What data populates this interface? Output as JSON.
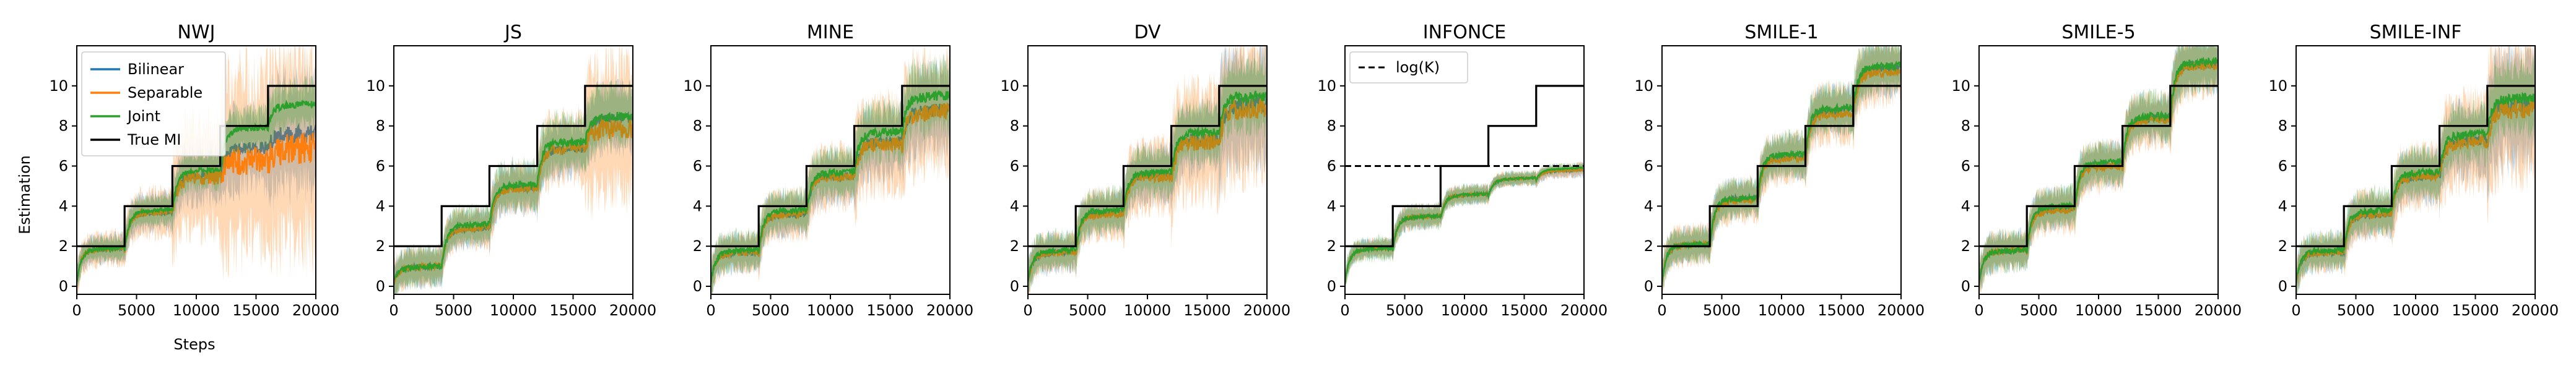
{
  "figure": {
    "shared_ylabel": "Estimation",
    "shared_xlabel": "Steps",
    "x_ticks": [
      0,
      5000,
      10000,
      15000,
      20000
    ],
    "y_ticks": [
      0,
      2,
      4,
      6,
      8,
      10
    ],
    "xlim": [
      0,
      20000
    ],
    "ylim": [
      -0.4,
      12
    ],
    "colors": {
      "Bilinear": "#1f77b4",
      "Separable": "#ff7f0e",
      "Joint": "#2ca02c",
      "True MI": "#000000"
    },
    "legend": {
      "panel": "NWJ",
      "entries": [
        "Bilinear",
        "Separable",
        "Joint",
        "True MI"
      ]
    },
    "infonce_legend": {
      "label": "log(K)"
    }
  },
  "chart_data": [
    {
      "type": "line",
      "title": "NWJ",
      "xlabel": "Steps",
      "ylabel": "Estimation",
      "xlim": [
        0,
        20000
      ],
      "ylim": [
        -0.4,
        12
      ],
      "true_mi": {
        "x": [
          0,
          4000,
          8000,
          12000,
          16000,
          20000
        ],
        "y": [
          2,
          4,
          6,
          8,
          10,
          10
        ]
      },
      "series": [
        {
          "name": "Bilinear",
          "plateaus": [
            1.8,
            3.6,
            5.5,
            6.8,
            7.5
          ],
          "band": [
            0.6,
            0.8,
            1.2,
            1.8,
            2.5
          ]
        },
        {
          "name": "Separable",
          "plateaus": [
            1.8,
            3.6,
            5.4,
            6.2,
            6.8
          ],
          "band": [
            0.7,
            1.0,
            2.5,
            4.0,
            4.5
          ]
        },
        {
          "name": "Joint",
          "plateaus": [
            1.8,
            3.7,
            5.7,
            7.8,
            9.0
          ],
          "band": [
            0.5,
            0.6,
            0.8,
            0.9,
            1.0
          ]
        }
      ]
    },
    {
      "type": "line",
      "title": "JS",
      "xlabel": "",
      "ylabel": "",
      "xlim": [
        0,
        20000
      ],
      "ylim": [
        -0.4,
        12
      ],
      "true_mi": {
        "x": [
          0,
          4000,
          8000,
          12000,
          16000,
          20000
        ],
        "y": [
          2,
          4,
          6,
          8,
          10,
          10
        ]
      },
      "series": [
        {
          "name": "Bilinear",
          "plateaus": [
            0.9,
            2.8,
            4.8,
            6.8,
            8.3
          ],
          "band": [
            0.8,
            0.8,
            1.0,
            1.2,
            1.4
          ]
        },
        {
          "name": "Separable",
          "plateaus": [
            0.9,
            2.8,
            4.8,
            6.8,
            7.8
          ],
          "band": [
            0.8,
            0.8,
            1.0,
            1.5,
            3.0
          ]
        },
        {
          "name": "Joint",
          "plateaus": [
            0.9,
            3.0,
            5.0,
            7.1,
            8.4
          ],
          "band": [
            0.8,
            0.8,
            1.0,
            1.2,
            1.3
          ]
        }
      ]
    },
    {
      "type": "line",
      "title": "MINE",
      "xlabel": "",
      "ylabel": "",
      "xlim": [
        0,
        20000
      ],
      "ylim": [
        -0.4,
        12
      ],
      "true_mi": {
        "x": [
          0,
          4000,
          8000,
          12000,
          16000,
          20000
        ],
        "y": [
          2,
          4,
          6,
          8,
          10,
          10
        ]
      },
      "series": [
        {
          "name": "Bilinear",
          "plateaus": [
            1.6,
            3.5,
            5.4,
            7.1,
            8.7
          ],
          "band": [
            0.8,
            0.9,
            1.1,
            1.5,
            1.8
          ]
        },
        {
          "name": "Separable",
          "plateaus": [
            1.6,
            3.5,
            5.4,
            7.0,
            8.6
          ],
          "band": [
            0.8,
            1.0,
            1.3,
            2.0,
            2.5
          ]
        },
        {
          "name": "Joint",
          "plateaus": [
            1.7,
            3.7,
            5.6,
            7.6,
            9.4
          ],
          "band": [
            0.8,
            0.9,
            1.0,
            1.2,
            1.5
          ]
        }
      ]
    },
    {
      "type": "line",
      "title": "DV",
      "xlabel": "",
      "ylabel": "",
      "xlim": [
        0,
        20000
      ],
      "ylim": [
        -0.4,
        12
      ],
      "true_mi": {
        "x": [
          0,
          4000,
          8000,
          12000,
          16000,
          20000
        ],
        "y": [
          2,
          4,
          6,
          8,
          10,
          10
        ]
      },
      "series": [
        {
          "name": "Bilinear",
          "plateaus": [
            1.6,
            3.6,
            5.5,
            7.3,
            9.0
          ],
          "band": [
            0.8,
            0.9,
            1.2,
            1.5,
            2.5
          ]
        },
        {
          "name": "Separable",
          "plateaus": [
            1.6,
            3.5,
            5.4,
            7.1,
            8.8
          ],
          "band": [
            0.8,
            1.0,
            1.5,
            2.5,
            3.0
          ]
        },
        {
          "name": "Joint",
          "plateaus": [
            1.7,
            3.7,
            5.6,
            7.6,
            9.4
          ],
          "band": [
            0.8,
            0.9,
            1.0,
            1.2,
            1.5
          ]
        }
      ]
    },
    {
      "type": "line",
      "title": "INFONCE",
      "xlabel": "",
      "ylabel": "",
      "xlim": [
        0,
        20000
      ],
      "ylim": [
        -0.4,
        12
      ],
      "true_mi": {
        "x": [
          0,
          4000,
          8000,
          12000,
          16000,
          20000
        ],
        "y": [
          2,
          4,
          6,
          8,
          10,
          10
        ]
      },
      "log_k": 6.0,
      "series": [
        {
          "name": "Bilinear",
          "plateaus": [
            1.8,
            3.4,
            4.5,
            5.3,
            5.7
          ],
          "band": [
            0.4,
            0.5,
            0.4,
            0.3,
            0.3
          ]
        },
        {
          "name": "Separable",
          "plateaus": [
            1.8,
            3.4,
            4.5,
            5.3,
            5.7
          ],
          "band": [
            0.4,
            0.5,
            0.4,
            0.3,
            0.3
          ]
        },
        {
          "name": "Joint",
          "plateaus": [
            1.8,
            3.4,
            4.5,
            5.3,
            5.8
          ],
          "band": [
            0.5,
            0.5,
            0.4,
            0.3,
            0.2
          ]
        }
      ]
    },
    {
      "type": "line",
      "title": "SMILE-1",
      "xlabel": "",
      "ylabel": "",
      "xlim": [
        0,
        20000
      ],
      "ylim": [
        -0.4,
        12
      ],
      "true_mi": {
        "x": [
          0,
          4000,
          8000,
          12000,
          16000,
          20000
        ],
        "y": [
          2,
          4,
          6,
          8,
          10,
          10
        ]
      },
      "series": [
        {
          "name": "Bilinear",
          "plateaus": [
            2.0,
            4.3,
            6.4,
            8.7,
            10.8
          ],
          "band": [
            0.7,
            0.8,
            0.9,
            1.0,
            1.1
          ]
        },
        {
          "name": "Separable",
          "plateaus": [
            2.0,
            4.2,
            6.3,
            8.5,
            10.6
          ],
          "band": [
            0.8,
            0.9,
            1.0,
            1.2,
            1.3
          ]
        },
        {
          "name": "Joint",
          "plateaus": [
            2.0,
            4.3,
            6.5,
            8.8,
            10.9
          ],
          "band": [
            0.7,
            0.8,
            0.9,
            1.0,
            1.1
          ]
        }
      ]
    },
    {
      "type": "line",
      "title": "SMILE-5",
      "xlabel": "",
      "ylabel": "",
      "xlim": [
        0,
        20000
      ],
      "ylim": [
        -0.4,
        12
      ],
      "true_mi": {
        "x": [
          0,
          4000,
          8000,
          12000,
          16000,
          20000
        ],
        "y": [
          2,
          4,
          6,
          8,
          10,
          10
        ]
      },
      "series": [
        {
          "name": "Bilinear",
          "plateaus": [
            1.7,
            3.8,
            6.0,
            8.3,
            11.0
          ],
          "band": [
            0.8,
            0.8,
            0.9,
            1.0,
            1.2
          ]
        },
        {
          "name": "Separable",
          "plateaus": [
            1.7,
            3.7,
            5.9,
            8.2,
            10.9
          ],
          "band": [
            0.8,
            0.9,
            1.0,
            1.1,
            1.3
          ]
        },
        {
          "name": "Joint",
          "plateaus": [
            1.7,
            3.9,
            6.1,
            8.4,
            11.1
          ],
          "band": [
            0.8,
            0.8,
            0.9,
            1.0,
            1.2
          ]
        }
      ]
    },
    {
      "type": "line",
      "title": "SMILE-INF",
      "xlabel": "",
      "ylabel": "",
      "xlim": [
        0,
        20000
      ],
      "ylim": [
        -0.4,
        12
      ],
      "true_mi": {
        "x": [
          0,
          4000,
          8000,
          12000,
          16000,
          20000
        ],
        "y": [
          2,
          4,
          6,
          8,
          10,
          10
        ]
      },
      "series": [
        {
          "name": "Bilinear",
          "plateaus": [
            1.6,
            3.5,
            5.4,
            7.2,
            9.0
          ],
          "band": [
            0.8,
            0.9,
            1.1,
            1.5,
            2.5
          ]
        },
        {
          "name": "Separable",
          "plateaus": [
            1.6,
            3.5,
            5.4,
            7.1,
            8.8
          ],
          "band": [
            0.8,
            1.0,
            1.3,
            2.0,
            3.0
          ]
        },
        {
          "name": "Joint",
          "plateaus": [
            1.7,
            3.7,
            5.6,
            7.5,
            9.3
          ],
          "band": [
            0.8,
            0.9,
            1.0,
            1.2,
            1.5
          ]
        }
      ]
    }
  ]
}
